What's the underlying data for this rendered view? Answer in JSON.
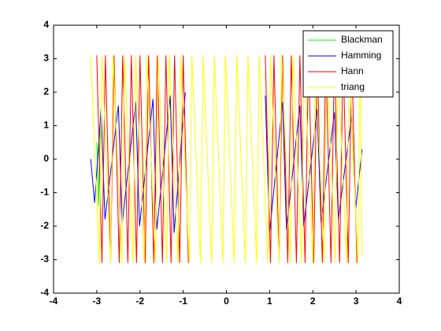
{
  "chart_data": {
    "type": "line",
    "xlim": [
      -4,
      4
    ],
    "ylim": [
      -4,
      4
    ],
    "xticks": [
      -4,
      -3,
      -2,
      -1,
      0,
      1,
      2,
      3,
      4
    ],
    "yticks": [
      -4,
      -3,
      -2,
      -1,
      0,
      1,
      2,
      3,
      4
    ],
    "legend": "upper-right",
    "series": [
      {
        "name": "Blackman",
        "color": "#00ff00",
        "x": [
          -3.0,
          -2.96,
          -2.92,
          0,
          2.9,
          2.95
        ],
        "values": [
          0.5,
          -1.4,
          1.0,
          null,
          1.2,
          -0.5
        ]
      },
      {
        "name": "Hamming",
        "color": "#0000ff",
        "x": [
          -3.14,
          -3.05,
          -2.9,
          -2.81,
          -2.5,
          -2.41,
          -2.1,
          -2.01,
          -1.7,
          -1.61,
          -1.3,
          -1.21,
          -0.95,
          0,
          0.9,
          1.0,
          1.3,
          1.39,
          1.7,
          1.79,
          2.1,
          2.19,
          2.5,
          2.59,
          2.9,
          2.99,
          3.14
        ],
        "values": [
          0,
          -1.3,
          1.5,
          -1.8,
          1.6,
          -1.9,
          1.7,
          -2.0,
          1.8,
          -2.1,
          1.9,
          -2.2,
          2.0,
          null,
          1.9,
          -2.2,
          1.7,
          -2.1,
          1.6,
          -2.0,
          1.5,
          -1.9,
          1.4,
          -1.8,
          1.3,
          -1.5,
          0.3
        ]
      },
      {
        "name": "Hann",
        "color": "#ff0000",
        "x": [
          -3.0,
          -2.88,
          -2.8,
          -2.68,
          -2.6,
          -2.48,
          -2.4,
          -2.28,
          -2.2,
          -2.08,
          -2.0,
          -1.88,
          -1.8,
          -1.68,
          -1.6,
          -1.48,
          -1.4,
          -1.28,
          -1.2,
          -1.08,
          -1.0,
          -0.88,
          0,
          0.9,
          1.02,
          1.1,
          1.22,
          1.3,
          1.42,
          1.5,
          1.62,
          1.7,
          1.82,
          1.9,
          2.02,
          2.1,
          2.22,
          2.3,
          2.42,
          2.5,
          2.62,
          2.7,
          2.82,
          2.9,
          3.02
        ],
        "values": [
          3.1,
          -3.1,
          3.1,
          -3.1,
          3.1,
          -3.1,
          3.1,
          -3.1,
          3.1,
          -3.1,
          3.1,
          -3.1,
          3.1,
          -3.1,
          3.1,
          -3.1,
          3.1,
          -3.1,
          3.1,
          -3.1,
          3.1,
          -3.1,
          null,
          3.1,
          -3.1,
          3.1,
          -3.1,
          3.1,
          -3.1,
          3.1,
          -3.1,
          3.1,
          -3.1,
          3.1,
          -3.1,
          3.1,
          -3.1,
          3.1,
          -3.1,
          3.1,
          -3.1,
          3.1,
          -3.1,
          3.1,
          -3.1
        ]
      },
      {
        "name": "triang",
        "color": "#ffff00",
        "x": [
          -3.14,
          -2.94,
          -2.88,
          -2.68,
          -2.62,
          -2.42,
          -2.36,
          -2.16,
          -2.1,
          -1.9,
          -1.84,
          -1.64,
          -1.58,
          -1.38,
          -1.32,
          -1.12,
          -1.06,
          -0.86,
          -0.8,
          -0.6,
          -0.54,
          -0.34,
          -0.28,
          -0.08,
          -0.02,
          0.18,
          0.24,
          0.44,
          0.5,
          0.7,
          0.76,
          0.96,
          1.02,
          1.22,
          1.28,
          1.48,
          1.54,
          1.74,
          1.8,
          2.0,
          2.06,
          2.26,
          2.32,
          2.52,
          2.58,
          2.78,
          2.84,
          3.04,
          3.1,
          3.14
        ],
        "values": [
          3.1,
          -3.1,
          3.1,
          -3.1,
          3.1,
          -3.1,
          3.1,
          -3.1,
          3.1,
          -3.1,
          3.1,
          -3.1,
          3.1,
          -3.1,
          3.1,
          -3.1,
          3.1,
          -3.1,
          3.1,
          -3.1,
          3.1,
          -3.1,
          3.1,
          -3.1,
          3.1,
          -3.1,
          3.1,
          -3.1,
          3.1,
          -3.1,
          3.1,
          -3.1,
          3.1,
          -3.1,
          3.1,
          -3.1,
          3.1,
          -3.1,
          3.1,
          -3.1,
          3.1,
          -3.1,
          3.1,
          -3.1,
          3.1,
          -3.1,
          3.1,
          -3.1,
          3.1,
          -2.9
        ]
      }
    ]
  }
}
